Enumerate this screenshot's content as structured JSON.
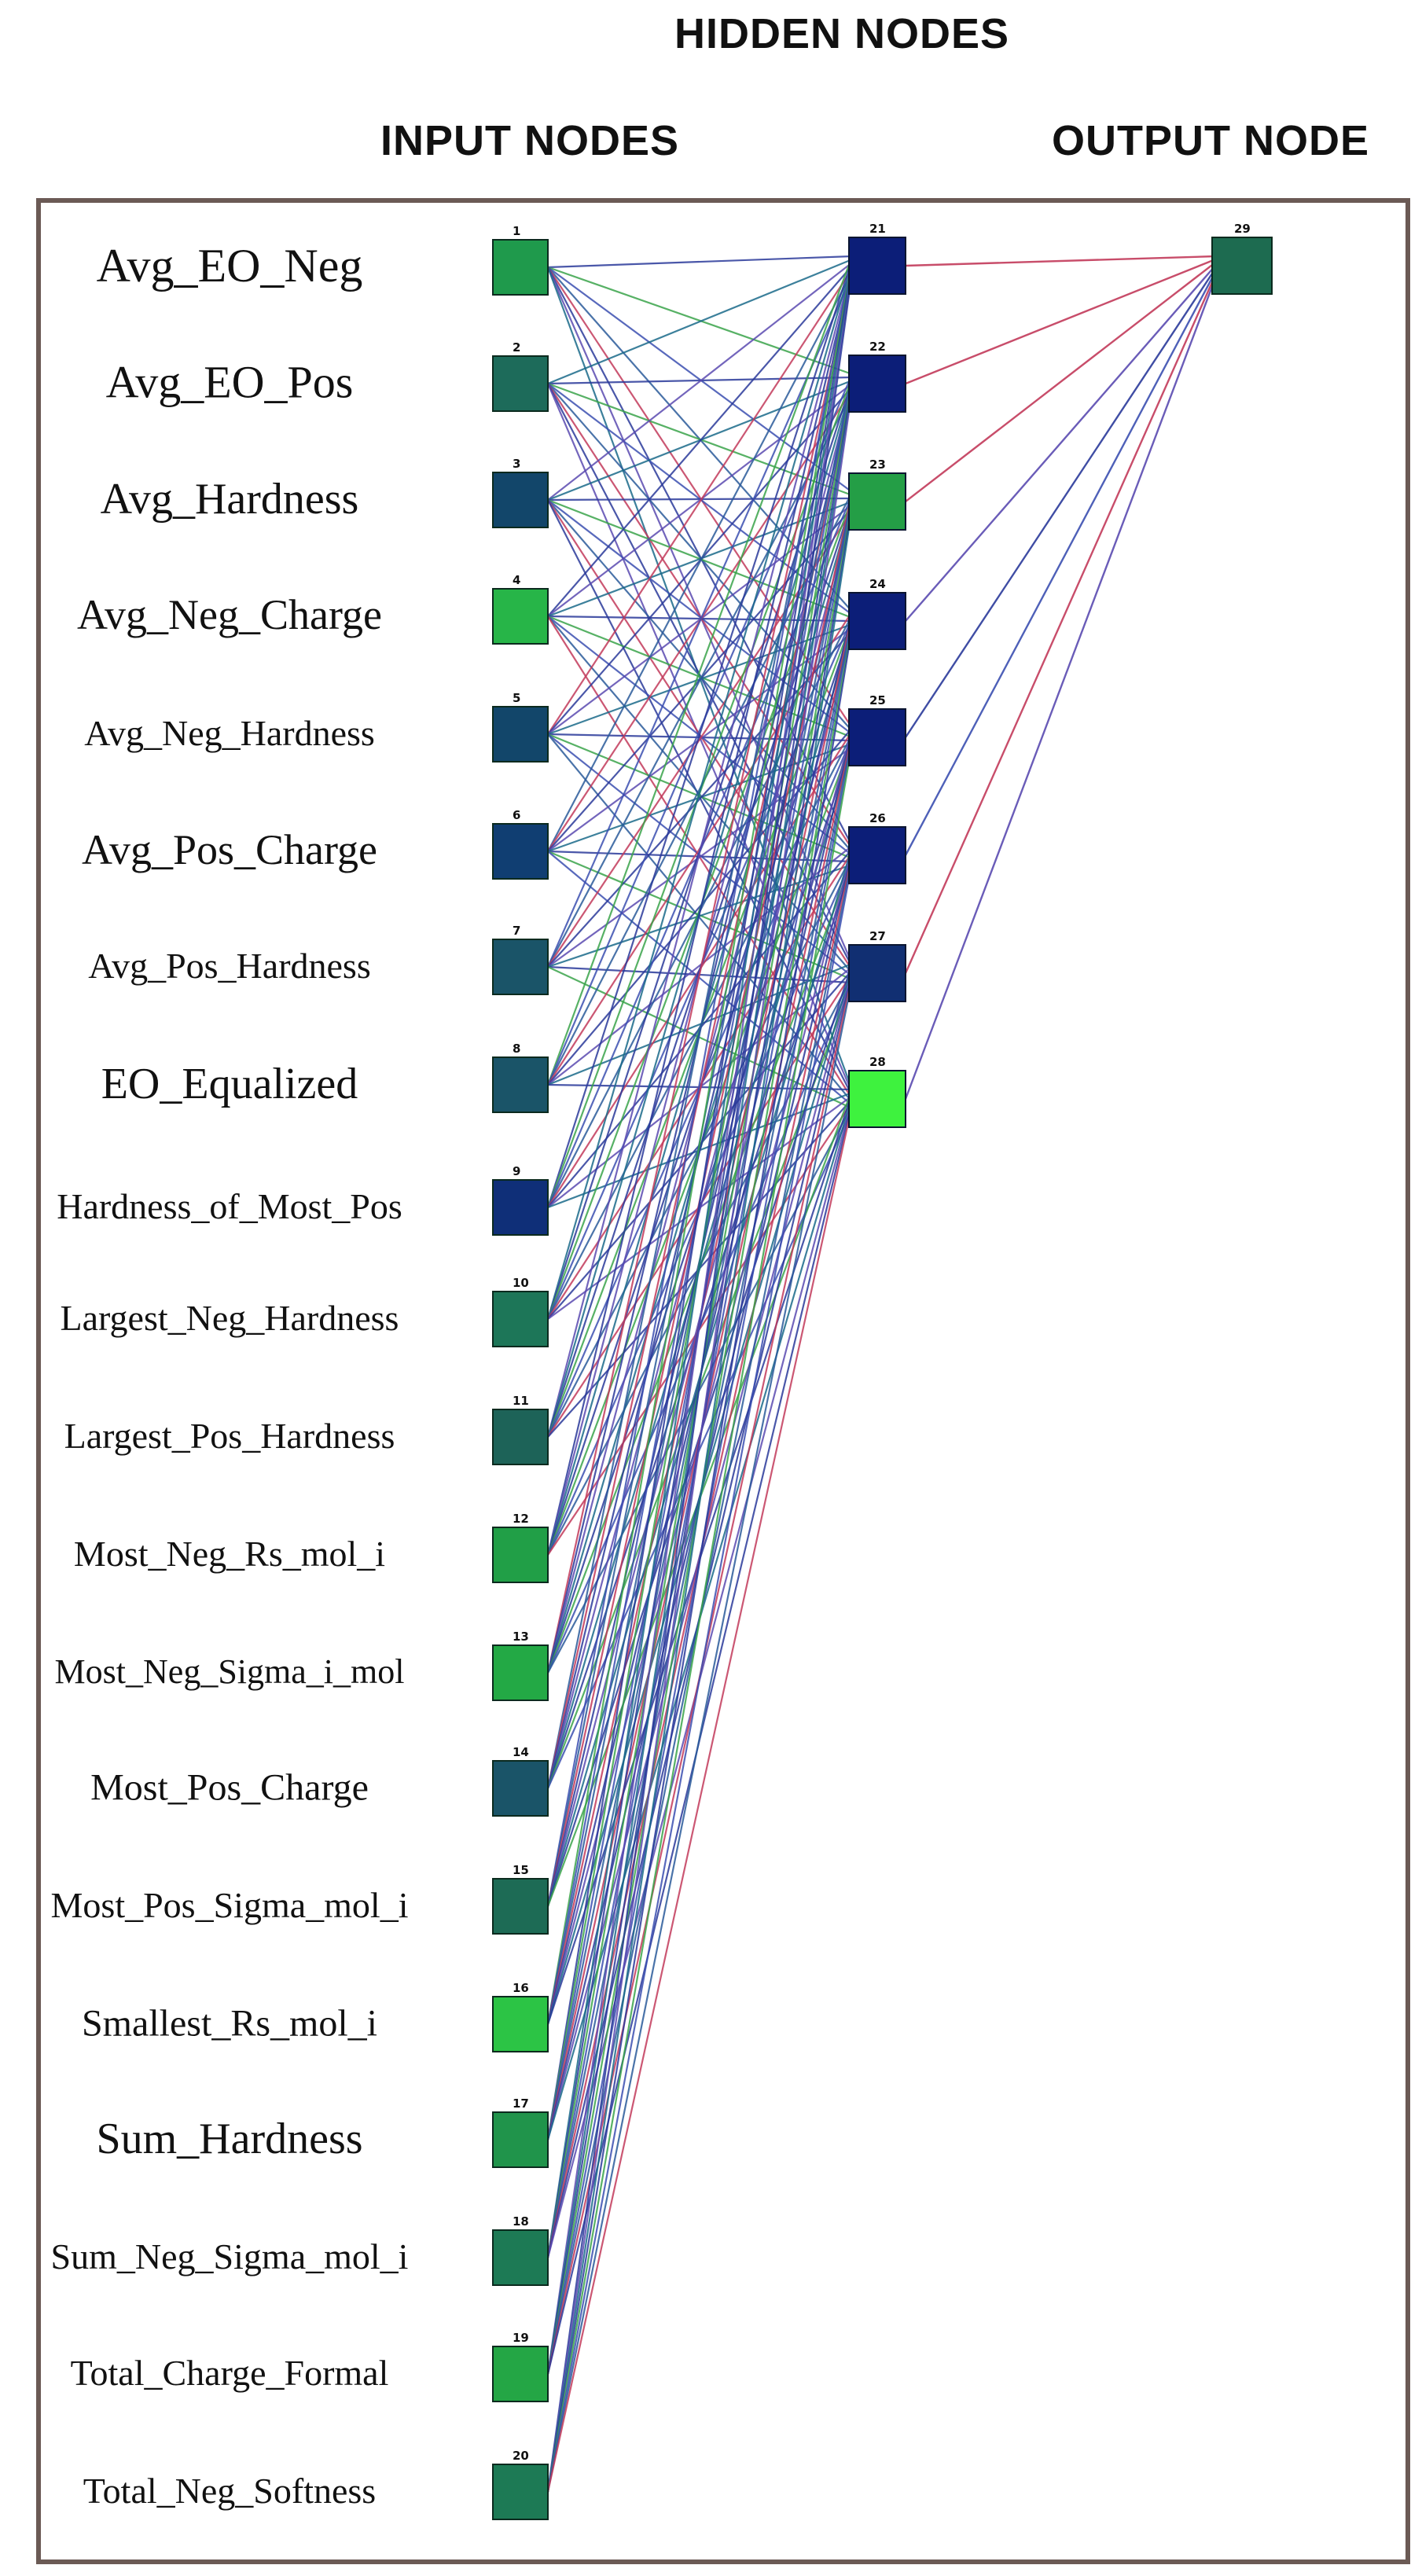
{
  "headers": {
    "hidden": "HIDDEN NODES",
    "input": "INPUT NODES",
    "output": "OUTPUT NODE"
  },
  "input_nodes": [
    {
      "id": "1",
      "label": "Avg_EO_Neg",
      "color": "#1f9a4c"
    },
    {
      "id": "2",
      "label": "Avg_EO_Pos",
      "color": "#1d6b5a"
    },
    {
      "id": "3",
      "label": "Avg_Hardness",
      "color": "#12466a"
    },
    {
      "id": "4",
      "label": "Avg_Neg_Charge",
      "color": "#27b548"
    },
    {
      "id": "5",
      "label": "Avg_Neg_Hardness",
      "color": "#12466a"
    },
    {
      "id": "6",
      "label": "Avg_Pos_Charge",
      "color": "#103e72"
    },
    {
      "id": "7",
      "label": "Avg_Pos_Hardness",
      "color": "#1a5468"
    },
    {
      "id": "8",
      "label": "EO_Equalized",
      "color": "#1a5468"
    },
    {
      "id": "9",
      "label": "Hardness_of_Most_Pos",
      "color": "#0f2f78"
    },
    {
      "id": "10",
      "label": "Largest_Neg_Hardness",
      "color": "#1d7658"
    },
    {
      "id": "11",
      "label": "Largest_Pos_Hardness",
      "color": "#1d6358"
    },
    {
      "id": "12",
      "label": "Most_Neg_Rs_mol_i",
      "color": "#219f47"
    },
    {
      "id": "13",
      "label": "Most_Neg_Sigma_i_mol",
      "color": "#23a945"
    },
    {
      "id": "14",
      "label": "Most_Pos_Charge",
      "color": "#1a5468"
    },
    {
      "id": "15",
      "label": "Most_Pos_Sigma_mol_i",
      "color": "#1d6b55"
    },
    {
      "id": "16",
      "label": "Smallest_Rs_mol_i",
      "color": "#2cc445"
    },
    {
      "id": "17",
      "label": "Sum_Hardness",
      "color": "#20944b"
    },
    {
      "id": "18",
      "label": "Sum_Neg_Sigma_mol_i",
      "color": "#1d7a55"
    },
    {
      "id": "19",
      "label": "Total_Charge_Formal",
      "color": "#24a645"
    },
    {
      "id": "20",
      "label": "Total_Neg_Softness",
      "color": "#1d7a55"
    }
  ],
  "hidden_nodes": [
    {
      "id": "21",
      "color": "#0c1e78"
    },
    {
      "id": "22",
      "color": "#0c1e78"
    },
    {
      "id": "23",
      "color": "#249e46"
    },
    {
      "id": "24",
      "color": "#0c1e78"
    },
    {
      "id": "25",
      "color": "#0c1e78"
    },
    {
      "id": "26",
      "color": "#0c1e78"
    },
    {
      "id": "27",
      "color": "#112f72"
    },
    {
      "id": "28",
      "color": "#3ef23e"
    }
  ],
  "output_node": {
    "id": "29",
    "color": "#1d6b50"
  },
  "connection_colors": [
    "#2a3a9a",
    "#2a3a9a",
    "#3b4fb0",
    "#1a6a8a",
    "#c23a5a",
    "#3aa34a",
    "#5a4ab0",
    "#2a5a9a"
  ]
}
